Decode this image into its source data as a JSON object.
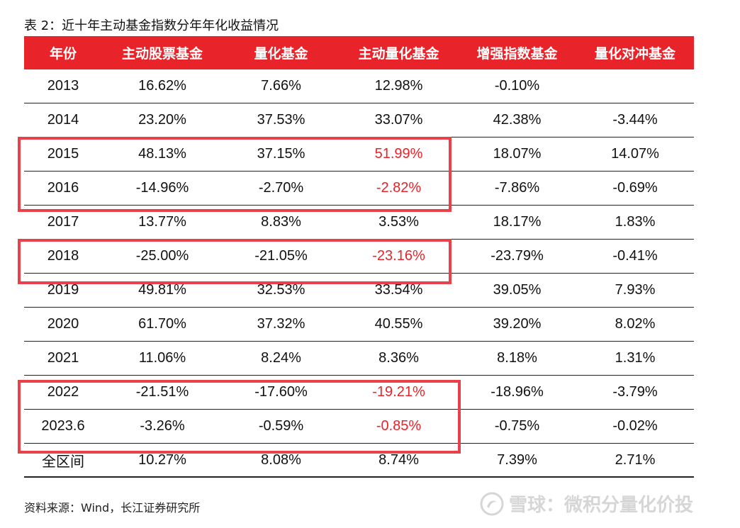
{
  "title": "表 2：近十年主动基金指数分年年化收益情况",
  "headers": [
    "年份",
    "主动股票基金",
    "量化基金",
    "主动量化基金",
    "增强指数基金",
    "量化对冲基金"
  ],
  "rows": [
    [
      "2013",
      "16.62%",
      "7.66%",
      "12.98%",
      "-0.10%",
      ""
    ],
    [
      "2014",
      "23.20%",
      "37.53%",
      "33.07%",
      "42.38%",
      "-3.44%"
    ],
    [
      "2015",
      "48.13%",
      "37.15%",
      "51.99%",
      "18.07%",
      "14.07%"
    ],
    [
      "2016",
      "-14.96%",
      "-2.70%",
      "-2.82%",
      "-7.86%",
      "-0.69%"
    ],
    [
      "2017",
      "13.77%",
      "8.83%",
      "3.53%",
      "18.17%",
      "1.83%"
    ],
    [
      "2018",
      "-25.00%",
      "-21.05%",
      "-23.16%",
      "-23.79%",
      "-0.41%"
    ],
    [
      "2019",
      "49.81%",
      "32.53%",
      "33.54%",
      "39.05%",
      "7.93%"
    ],
    [
      "2020",
      "61.70%",
      "37.32%",
      "40.55%",
      "39.20%",
      "8.02%"
    ],
    [
      "2021",
      "11.06%",
      "8.24%",
      "8.36%",
      "8.18%",
      "1.31%"
    ],
    [
      "2022",
      "-21.51%",
      "-17.60%",
      "-19.21%",
      "-18.96%",
      "-3.79%"
    ],
    [
      "2023.6",
      "-3.26%",
      "-0.59%",
      "-0.85%",
      "-0.75%",
      "-0.02%"
    ],
    [
      "全区间",
      "10.27%",
      "8.08%",
      "8.74%",
      "7.39%",
      "2.71%"
    ]
  ],
  "highlighted_years": [
    "2015",
    "2016",
    "2018",
    "2022",
    "2023.6"
  ],
  "source": "资料来源：Wind，长江证券研究所",
  "watermark": {
    "text": "雪球：微积分量化价投",
    "icon": "snowball-logo-icon"
  },
  "colors": {
    "header_bg": "#e8242a",
    "header_text": "#ffffff",
    "highlight_text": "#e8242a",
    "highlight_box": "#e8414a"
  }
}
